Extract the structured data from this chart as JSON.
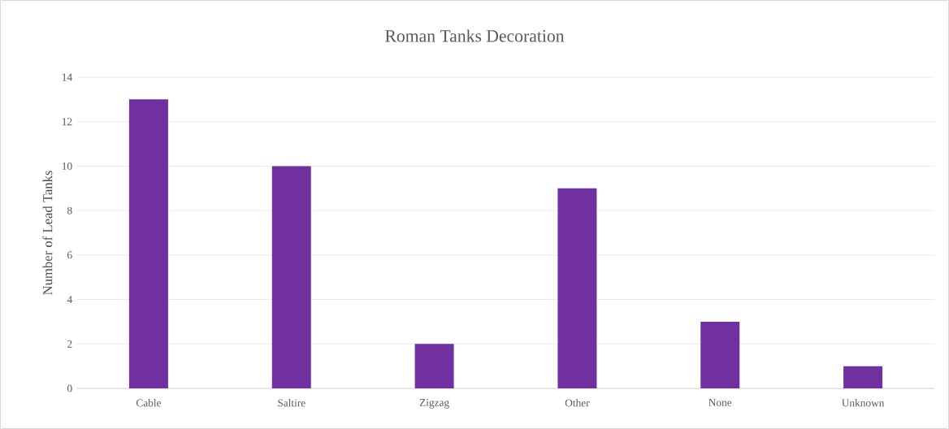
{
  "chart_data": {
    "type": "bar",
    "title": "Roman Tanks Decoration",
    "ylabel": "Number of Lead Tanks",
    "categories": [
      "Cable",
      "Saltire",
      "Zigzag",
      "Other",
      "None",
      "Unknown"
    ],
    "values": [
      13,
      10,
      2,
      9,
      3,
      1
    ],
    "color": "#7030a0",
    "ylim": [
      0,
      14
    ],
    "yticks": [
      0,
      2,
      4,
      6,
      8,
      10,
      12,
      14
    ],
    "grid": "y"
  }
}
